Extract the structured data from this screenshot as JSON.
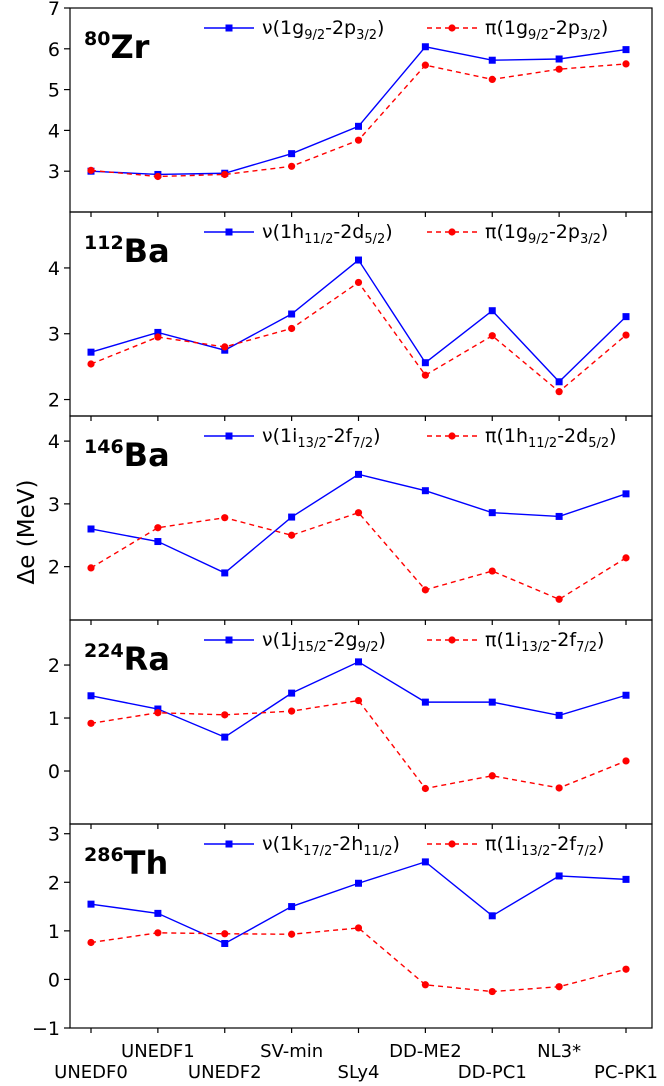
{
  "chart_data": {
    "type": "line",
    "ylabel": "Δe (MeV)",
    "categories": [
      "UNEDF0",
      "UNEDF1",
      "UNEDF2",
      "SV-min",
      "SLy4",
      "DD-ME2",
      "DD-PC1",
      "NL3*",
      "PC-PK1"
    ],
    "panels": [
      {
        "nucleus": {
          "mass": "80",
          "symbol": "Zr"
        },
        "ylim": [
          2.0,
          7.0
        ],
        "yticks": [
          3,
          4,
          5,
          6,
          7
        ],
        "series": [
          {
            "label": "ν(1g9/2-2p3/2)",
            "label_parts": [
              [
                "ν(1g",
                ""
              ],
              [
                "9/2",
                "sub"
              ],
              [
                "-2p",
                ""
              ],
              [
                "3/2",
                "sub"
              ],
              [
                ")",
                ""
              ]
            ],
            "color": "#0000ff",
            "dash": "",
            "marker": "square",
            "values": [
              3.0,
              2.92,
              2.95,
              3.43,
              4.1,
              6.05,
              5.72,
              5.75,
              5.98
            ]
          },
          {
            "label": "π(1g9/2-2p3/2)",
            "label_parts": [
              [
                "π(1g",
                ""
              ],
              [
                "9/2",
                "sub"
              ],
              [
                "-2p",
                ""
              ],
              [
                "3/2",
                "sub"
              ],
              [
                ")",
                ""
              ]
            ],
            "color": "#ff0000",
            "dash": "5,4",
            "marker": "circle",
            "values": [
              3.02,
              2.87,
              2.92,
              3.12,
              3.76,
              5.6,
              5.25,
              5.5,
              5.63
            ]
          }
        ]
      },
      {
        "nucleus": {
          "mass": "112",
          "symbol": "Ba"
        },
        "ylim": [
          1.75,
          4.85
        ],
        "yticks": [
          2,
          3,
          4
        ],
        "series": [
          {
            "label": "ν(1h11/2-2d5/2)",
            "label_parts": [
              [
                "ν(1h",
                ""
              ],
              [
                "11/2",
                "sub"
              ],
              [
                "-2d",
                ""
              ],
              [
                "5/2",
                "sub"
              ],
              [
                ")",
                ""
              ]
            ],
            "color": "#0000ff",
            "dash": "",
            "marker": "square",
            "values": [
              2.72,
              3.02,
              2.75,
              3.3,
              4.12,
              2.56,
              3.35,
              2.27,
              3.26
            ]
          },
          {
            "label": "π(1g9/2-2p3/2)",
            "label_parts": [
              [
                "π(1g",
                ""
              ],
              [
                "9/2",
                "sub"
              ],
              [
                "-2p",
                ""
              ],
              [
                "3/2",
                "sub"
              ],
              [
                ")",
                ""
              ]
            ],
            "color": "#ff0000",
            "dash": "5,4",
            "marker": "circle",
            "values": [
              2.54,
              2.95,
              2.8,
              3.08,
              3.78,
              2.37,
              2.97,
              2.12,
              2.98
            ]
          }
        ]
      },
      {
        "nucleus": {
          "mass": "146",
          "symbol": "Ba"
        },
        "ylim": [
          1.15,
          4.4
        ],
        "yticks": [
          2,
          3,
          4
        ],
        "series": [
          {
            "label": "ν(1i13/2-2f7/2)",
            "label_parts": [
              [
                "ν(1i",
                ""
              ],
              [
                "13/2",
                "sub"
              ],
              [
                "-2f",
                ""
              ],
              [
                "7/2",
                "sub"
              ],
              [
                ")",
                ""
              ]
            ],
            "color": "#0000ff",
            "dash": "",
            "marker": "square",
            "values": [
              2.6,
              2.4,
              1.9,
              2.79,
              3.47,
              3.21,
              2.86,
              2.8,
              3.16
            ]
          },
          {
            "label": "π(1h11/2-2d5/2)",
            "label_parts": [
              [
                "π(1h",
                ""
              ],
              [
                "11/2",
                "sub"
              ],
              [
                "-2d",
                ""
              ],
              [
                "5/2",
                "sub"
              ],
              [
                ")",
                ""
              ]
            ],
            "color": "#ff0000",
            "dash": "5,4",
            "marker": "circle",
            "values": [
              1.98,
              2.62,
              2.78,
              2.5,
              2.86,
              1.63,
              1.93,
              1.48,
              2.14
            ]
          }
        ]
      },
      {
        "nucleus": {
          "mass": "224",
          "symbol": "Ra"
        },
        "ylim": [
          -1.0,
          2.85
        ],
        "yticks": [
          0,
          1,
          2
        ],
        "series": [
          {
            "label": "ν(1j15/2-2g9/2)",
            "label_parts": [
              [
                "ν(1j",
                ""
              ],
              [
                "15/2",
                "sub"
              ],
              [
                "-2g",
                ""
              ],
              [
                "9/2",
                "sub"
              ],
              [
                ")",
                ""
              ]
            ],
            "color": "#0000ff",
            "dash": "",
            "marker": "square",
            "values": [
              1.42,
              1.17,
              0.64,
              1.47,
              2.06,
              1.3,
              1.3,
              1.05,
              1.43
            ]
          },
          {
            "label": "π(1i13/2-2f7/2)",
            "label_parts": [
              [
                "π(1i",
                ""
              ],
              [
                "13/2",
                "sub"
              ],
              [
                "-2f",
                ""
              ],
              [
                "7/2",
                "sub"
              ],
              [
                ")",
                ""
              ]
            ],
            "color": "#ff0000",
            "dash": "5,4",
            "marker": "circle",
            "values": [
              0.9,
              1.1,
              1.06,
              1.13,
              1.33,
              -0.33,
              -0.09,
              -0.32,
              0.19
            ]
          }
        ]
      },
      {
        "nucleus": {
          "mass": "286",
          "symbol": "Th"
        },
        "ylim": [
          -1.0,
          3.2
        ],
        "yticks": [
          -1,
          0,
          1,
          2,
          3
        ],
        "series": [
          {
            "label": "ν(1k17/2-2h11/2)",
            "label_parts": [
              [
                "ν(1k",
                ""
              ],
              [
                "17/2",
                "sub"
              ],
              [
                "-2h",
                ""
              ],
              [
                "11/2",
                "sub"
              ],
              [
                ")",
                ""
              ]
            ],
            "color": "#0000ff",
            "dash": "",
            "marker": "square",
            "values": [
              1.55,
              1.36,
              0.74,
              1.5,
              1.98,
              2.42,
              1.31,
              2.13,
              2.06
            ]
          },
          {
            "label": "π(1i13/2-2f7/2)",
            "label_parts": [
              [
                "π(1i",
                ""
              ],
              [
                "13/2",
                "sub"
              ],
              [
                "-2f",
                ""
              ],
              [
                "7/2",
                "sub"
              ],
              [
                ")",
                ""
              ]
            ],
            "color": "#ff0000",
            "dash": "5,4",
            "marker": "circle",
            "values": [
              0.76,
              0.96,
              0.94,
              0.93,
              1.06,
              -0.11,
              -0.25,
              -0.15,
              0.21
            ]
          }
        ]
      }
    ]
  }
}
